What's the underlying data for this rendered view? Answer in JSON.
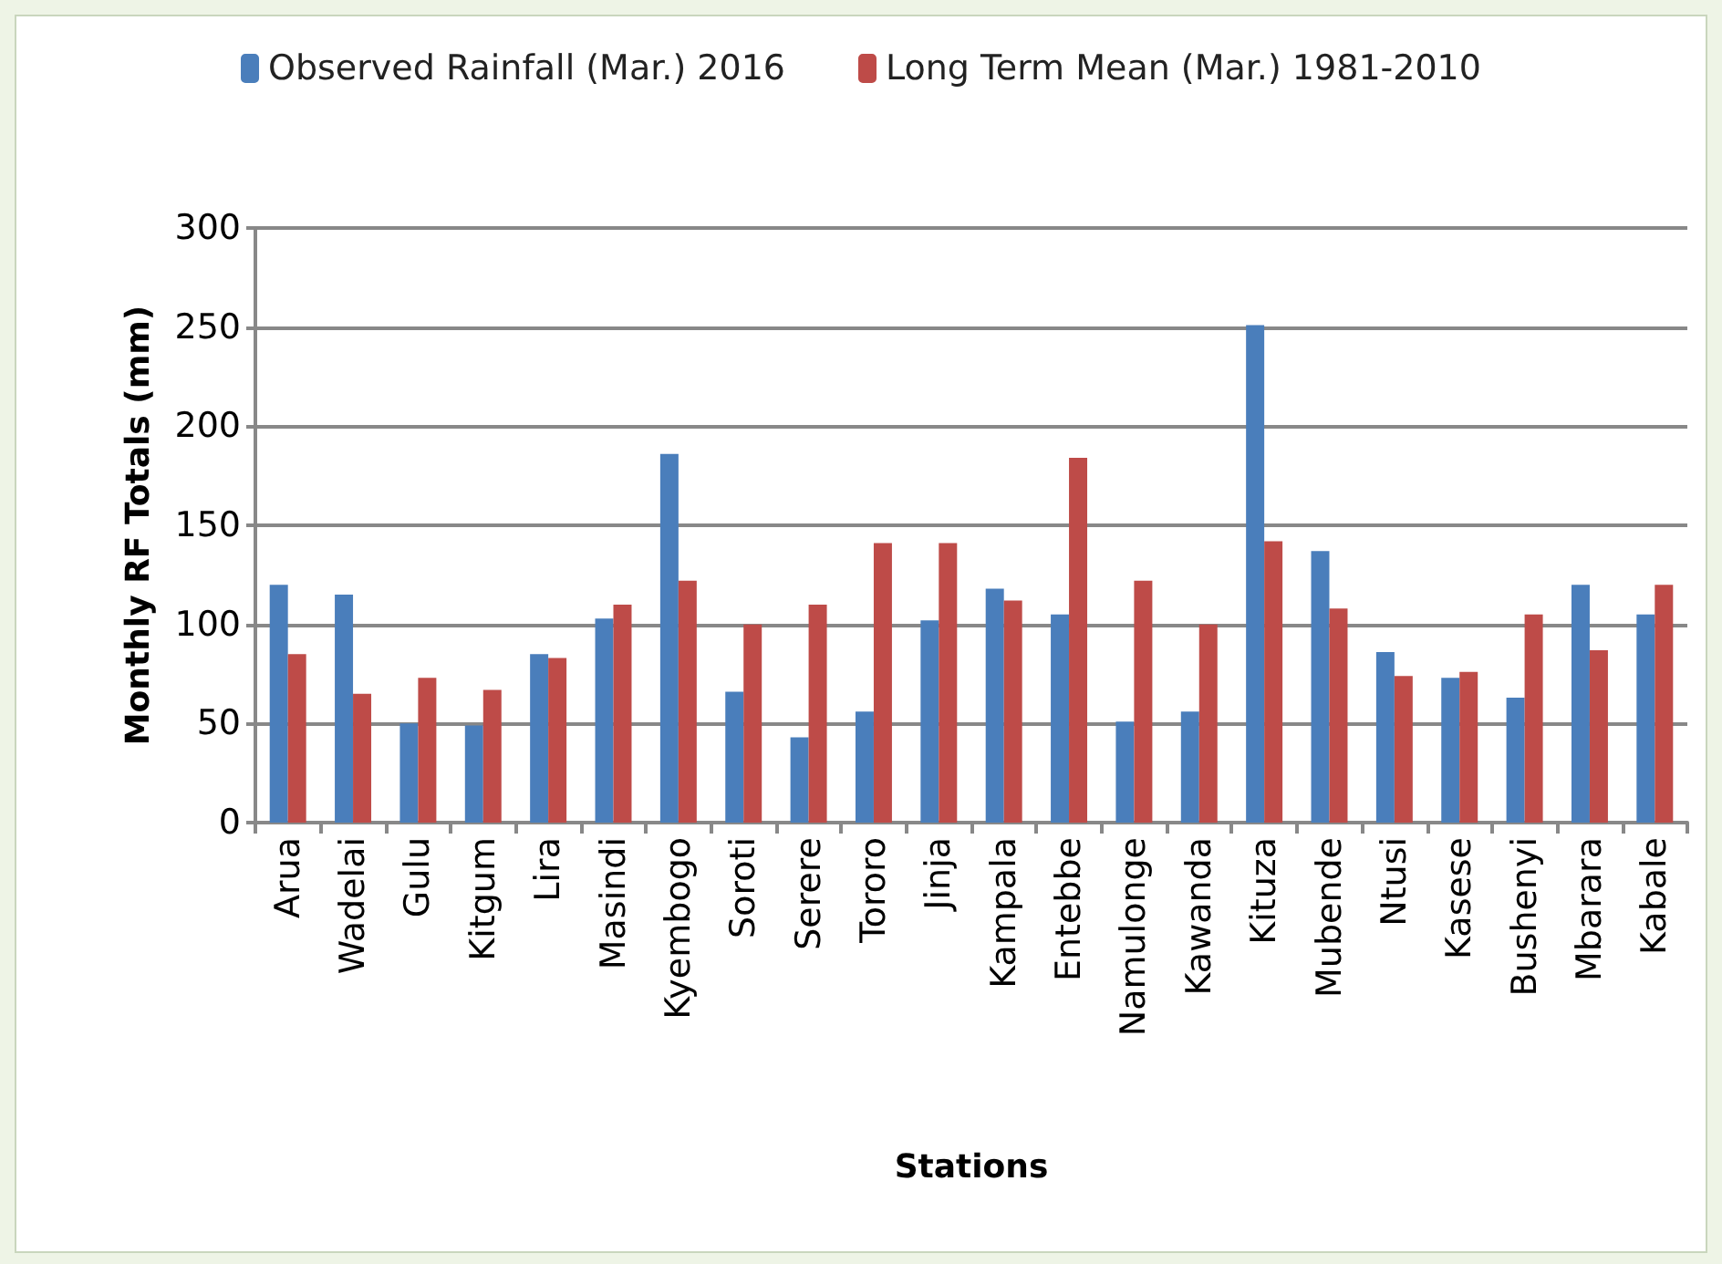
{
  "chart_data": {
    "type": "bar",
    "xlabel": "Stations",
    "ylabel": "Monthly RF Totals (mm)",
    "categories": [
      "Arua",
      "Wadelai",
      "Gulu",
      "Kitgum",
      "Lira",
      "Masindi",
      "Kyembogo",
      "Soroti",
      "Serere",
      "Tororo",
      "Jinja",
      "Kampala",
      "Entebbe",
      "Namulonge",
      "Kawanda",
      "Kituza",
      "Mubende",
      "Ntusi",
      "Kasese",
      "Bushenyi",
      "Mbarara",
      "Kabale"
    ],
    "series": [
      {
        "name": "Observed Rainfall (Mar.) 2016",
        "color": "#4a7ebb",
        "values": [
          120,
          115,
          50,
          49,
          85,
          103,
          186,
          66,
          43,
          56,
          102,
          118,
          105,
          51,
          56,
          251,
          137,
          86,
          73,
          63,
          120,
          105
        ]
      },
      {
        "name": "Long Term Mean (Mar.) 1981-2010",
        "color": "#be4b48",
        "values": [
          85,
          65,
          73,
          67,
          83,
          110,
          122,
          100,
          110,
          141,
          141,
          112,
          184,
          122,
          100,
          142,
          108,
          74,
          76,
          105,
          87,
          120
        ]
      }
    ],
    "ylim": [
      0,
      300
    ],
    "yticks": [
      0,
      50,
      100,
      150,
      200,
      250,
      300
    ],
    "grid": "y",
    "legend": "top"
  }
}
